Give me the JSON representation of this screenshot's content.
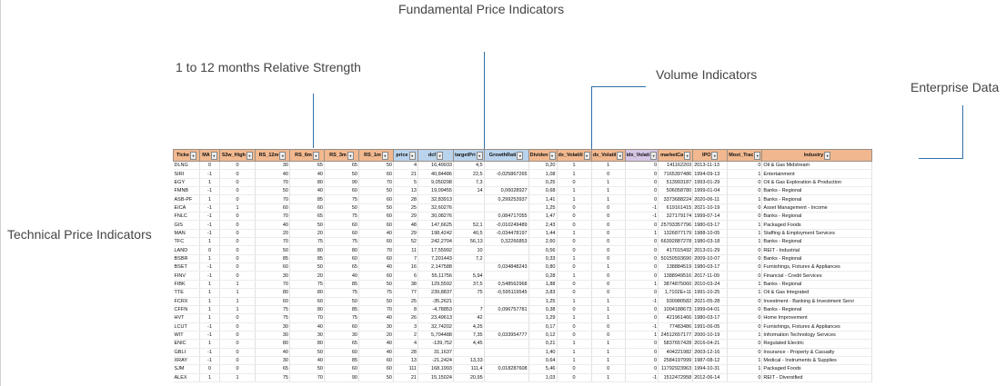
{
  "annotations": {
    "fundamental": "Fundamental Price Indicators",
    "relative_strength": "1 to 12 months Relative Strength",
    "volume": "Volume Indicators",
    "enterprise": "Enterprise Data",
    "technical": "Technical Price Indicators"
  },
  "columns": [
    "Ticke",
    "MA",
    "52w_High",
    "RS_12m",
    "RS_6m",
    "RS_3m",
    "RS_1m",
    "price",
    "dcf",
    "targetPri",
    "GrowthRati",
    "Dividen",
    "dx_Volatili",
    "dx_Volatil",
    "idx_Volati",
    "marketCa",
    "IPO",
    "Most_Trac",
    "Industry"
  ],
  "rows": [
    [
      "DLNG",
      "0",
      "0",
      "30",
      "65",
      "65",
      "50",
      "4",
      "16,49933",
      "4,5",
      "",
      "0,20",
      "1",
      "1",
      "0",
      "141162203",
      "2013-11-13",
      "0",
      "Oil & Gas Midstream"
    ],
    [
      "SIRI",
      "-1",
      "0",
      "40",
      "40",
      "50",
      "60",
      "21",
      "40,84486",
      "22,5",
      "-0,025867265",
      "1,08",
      "1",
      "0",
      "0",
      "7165397486",
      "1994-09-13",
      "1",
      "Entertainment"
    ],
    [
      "EGY",
      "1",
      "0",
      "70",
      "80",
      "90",
      "70",
      "5",
      "9,050298",
      "7,3",
      "",
      "0,25",
      "0",
      "1",
      "0",
      "513993187",
      "1993-01-29",
      "0",
      "Oil & Gas Exploration & Production"
    ],
    [
      "FMNB",
      "-1",
      "0",
      "50",
      "40",
      "60",
      "50",
      "13",
      "19,09455",
      "14",
      "0,06028927",
      "0,68",
      "1",
      "1",
      "0",
      "506058780",
      "1999-01-04",
      "0",
      "Banks - Regional"
    ],
    [
      "ASB-PF",
      "1",
      "0",
      "70",
      "85",
      "75",
      "60",
      "28",
      "32,83913",
      "",
      "0,299253937",
      "1,41",
      "1",
      "1",
      "0",
      "3373688224",
      "2020-06-11",
      "1",
      "Banks - Regional"
    ],
    [
      "EICA",
      "-1",
      "1",
      "60",
      "60",
      "50",
      "50",
      "25",
      "32,60276",
      "",
      "",
      "1,25",
      "0",
      "0",
      "-1",
      "619161415",
      "2021-10-19",
      "0",
      "Asset Management - Income"
    ],
    [
      "FNLC",
      "-1",
      "0",
      "70",
      "65",
      "75",
      "60",
      "29",
      "30,08276",
      "",
      "0,084717055",
      "1,47",
      "0",
      "0",
      "-1",
      "327179174",
      "1999-07-14",
      "0",
      "Banks - Regional"
    ],
    [
      "GIS",
      "-1",
      "0",
      "40",
      "50",
      "60",
      "60",
      "48",
      "147,6625",
      "52,1",
      "-0,010249489",
      "2,43",
      "0",
      "0",
      "0",
      "25793357796",
      "1980-03-17",
      "1",
      "Packaged Foods"
    ],
    [
      "MAN",
      "-1",
      "0",
      "20",
      "20",
      "60",
      "40",
      "29",
      "198,4242",
      "40,5",
      "-0,034478197",
      "1,44",
      "1",
      "0",
      "1",
      "1326877179",
      "1988-10-05",
      "1",
      "Staffing & Employment Services"
    ],
    [
      "TFC",
      "1",
      "0",
      "70",
      "75",
      "75",
      "60",
      "52",
      "242,2704",
      "56,13",
      "0,32266853",
      "2,60",
      "0",
      "0",
      "0",
      "66392887278",
      "1980-03-18",
      "1",
      "Banks - Regional"
    ],
    [
      "LAND",
      "0",
      "0",
      "50",
      "80",
      "80",
      "70",
      "11",
      "17,55992",
      "10",
      "",
      "0,56",
      "0",
      "0",
      "0",
      "417015492",
      "2013-01-29",
      "0",
      "REIT - Industrial"
    ],
    [
      "BSBR",
      "1",
      "0",
      "85",
      "85",
      "60",
      "60",
      "7",
      "7,201443",
      "7,2",
      "",
      "0,33",
      "1",
      "0",
      "0",
      "50150593690",
      "2009-10-07",
      "0",
      "Banks - Regional"
    ],
    [
      "BSET",
      "-1",
      "0",
      "60",
      "50",
      "65",
      "40",
      "16",
      "2,147588",
      "",
      "0,034848243",
      "0,80",
      "0",
      "1",
      "0",
      "138884519",
      "1980-03-17",
      "0",
      "Furnishings, Fixtures & Appliances"
    ],
    [
      "FINV",
      "-1",
      "0",
      "30",
      "20",
      "40",
      "60",
      "6",
      "55,11756",
      "5,94",
      "",
      "0,28",
      "1",
      "0",
      "0",
      "1388949516",
      "2017-11-09",
      "0",
      "Financial - Credit Services"
    ],
    [
      "FIBK",
      "1",
      "1",
      "70",
      "75",
      "85",
      "50",
      "38",
      "129,5592",
      "37,5",
      "0,548562968",
      "1,88",
      "0",
      "0",
      "1",
      "3874875060",
      "2010-03-24",
      "1",
      "Banks - Regional"
    ],
    [
      "TTE",
      "1",
      "1",
      "80",
      "80",
      "75",
      "75",
      "77",
      "239,8837",
      "75",
      "-0,595119545",
      "3,83",
      "0",
      "0",
      "0",
      "1,7102E+11",
      "1991-10-25",
      "1",
      "Oil & Gas Integrated"
    ],
    [
      "FCRX",
      "1",
      "1",
      "60",
      "60",
      "50",
      "50",
      "25",
      "-35,2621",
      "",
      "",
      "1,25",
      "1",
      "1",
      "-1",
      "930980582",
      "2021-05-28",
      "0",
      "Investment - Banking & Investment Servi"
    ],
    [
      "CFFN",
      "1",
      "1",
      "75",
      "80",
      "85",
      "70",
      "8",
      "-4,78853",
      "7",
      "0,096757781",
      "0,38",
      "0",
      "1",
      "0",
      "1004188673",
      "1999-04-01",
      "0",
      "Banks - Regional"
    ],
    [
      "HVT",
      "1",
      "0",
      "75",
      "70",
      "75",
      "40",
      "26",
      "23,49613",
      "42",
      "",
      "1,29",
      "1",
      "1",
      "0",
      "421961466",
      "1980-03-17",
      "0",
      "Home Improvement"
    ],
    [
      "LCUT",
      "-1",
      "0",
      "30",
      "40",
      "60",
      "30",
      "3",
      "32,74202",
      "4,25",
      "",
      "0,17",
      "0",
      "0",
      "-1",
      "77483486",
      "1991-06-05",
      "0",
      "Furnishings, Fixtures & Appliances"
    ],
    [
      "WIT",
      "-1",
      "0",
      "30",
      "30",
      "30",
      "20",
      "2",
      "5,704488",
      "7,35",
      "0,033954777",
      "0,12",
      "0",
      "0",
      "1",
      "24512657177",
      "2000-10-19",
      "1",
      "Information Technology Services"
    ],
    [
      "ENIC",
      "1",
      "0",
      "80",
      "80",
      "65",
      "40",
      "4",
      "-139,752",
      "4,45",
      "",
      "0,21",
      "1",
      "1",
      "0",
      "5837657428",
      "2016-04-21",
      "0",
      "Regulated Electric"
    ],
    [
      "GBLI",
      "-1",
      "0",
      "40",
      "50",
      "60",
      "40",
      "28",
      "31,1637",
      "",
      "",
      "1,40",
      "1",
      "1",
      "0",
      "404221982",
      "2003-12-16",
      "0",
      "Insurance - Property & Casualty"
    ],
    [
      "XRAY",
      "-1",
      "0",
      "30",
      "40",
      "85",
      "60",
      "13",
      "-21,2424",
      "13,33",
      "",
      "0,64",
      "1",
      "1",
      "0",
      "2584197999",
      "1987-08-12",
      "1",
      "Medical - Instruments & Supplies"
    ],
    [
      "SJM",
      "0",
      "0",
      "65",
      "50",
      "60",
      "60",
      "111",
      "168,1993",
      "111,4",
      "0,018287608",
      "5,46",
      "0",
      "0",
      "0",
      "11792923963",
      "1994-10-31",
      "1",
      "Packaged Foods"
    ],
    [
      "ALEX",
      "1",
      "1",
      "75",
      "70",
      "90",
      "50",
      "21",
      "15,15024",
      "20,95",
      "",
      "1,03",
      "0",
      "1",
      "-1",
      "1512472958",
      "2012-06-14",
      "0",
      "REIT - Diversified"
    ]
  ]
}
